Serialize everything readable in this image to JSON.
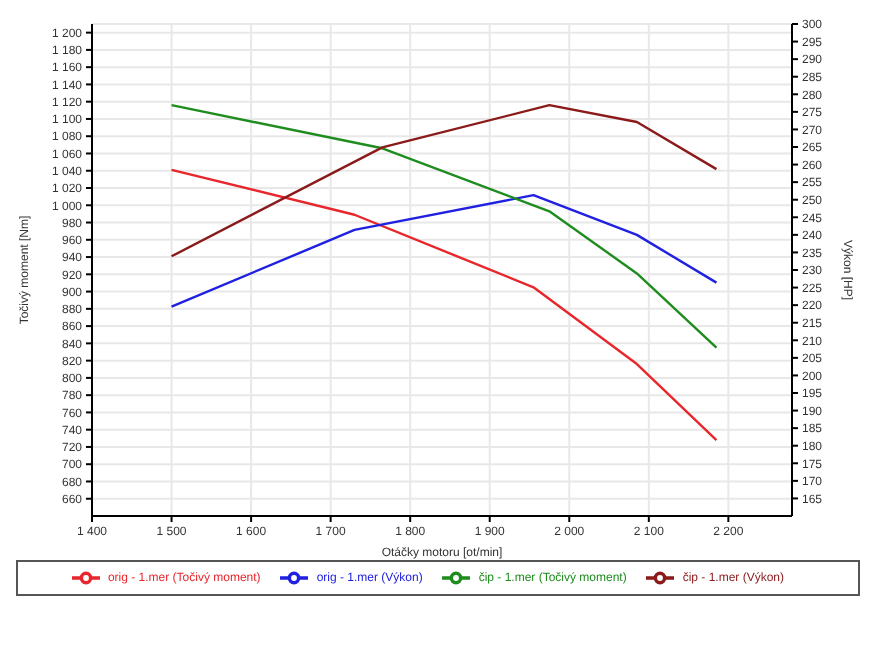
{
  "chart_data": {
    "type": "line",
    "xlabel": "Otáčky motoru [ot/min]",
    "ylabel": "Točivý moment [Nm]",
    "y2label": "Výkon [HP]",
    "xlim": [
      1400,
      2280
    ],
    "xticks": [
      {
        "value": 1400,
        "label": "1 400"
      },
      {
        "value": 1500,
        "label": "1 500"
      },
      {
        "value": 1600,
        "label": "1 600"
      },
      {
        "value": 1700,
        "label": "1 700"
      },
      {
        "value": 1800,
        "label": "1 800"
      },
      {
        "value": 1900,
        "label": "1 900"
      },
      {
        "value": 2000,
        "label": "2 000"
      },
      {
        "value": 2100,
        "label": "2 100"
      },
      {
        "value": 2200,
        "label": "2 200"
      }
    ],
    "ylim": [
      640,
      1210
    ],
    "yticks": [
      660,
      680,
      700,
      720,
      740,
      760,
      780,
      800,
      820,
      840,
      860,
      880,
      900,
      920,
      940,
      960,
      980,
      {
        "value": 1000,
        "label": "1 000"
      },
      {
        "value": 1020,
        "label": "1 020"
      },
      {
        "value": 1040,
        "label": "1 040"
      },
      {
        "value": 1060,
        "label": "1 060"
      },
      {
        "value": 1080,
        "label": "1 080"
      },
      {
        "value": 1100,
        "label": "1 100"
      },
      {
        "value": 1120,
        "label": "1 120"
      },
      {
        "value": 1140,
        "label": "1 140"
      },
      {
        "value": 1160,
        "label": "1 160"
      },
      {
        "value": 1180,
        "label": "1 180"
      },
      {
        "value": 1200,
        "label": "1 200"
      }
    ],
    "y2lim": [
      160,
      300
    ],
    "y2ticks": [
      165,
      170,
      175,
      180,
      185,
      190,
      195,
      200,
      205,
      210,
      215,
      220,
      225,
      230,
      235,
      240,
      245,
      250,
      255,
      260,
      265,
      270,
      275,
      280,
      285,
      290,
      295,
      300
    ],
    "grid": true,
    "legend": "bottom",
    "marker": "none",
    "line_style": "solid",
    "series": [
      {
        "name": "orig - 1.mer  (Točivý moment)",
        "color": "#e8262b",
        "x": [
          1500,
          1730,
          1955,
          2085,
          2185
        ],
        "values": [
          1041,
          989,
          905,
          816,
          728
        ]
      },
      {
        "name": "orig - 1.mer  (Výkon)",
        "color": "#2020e0",
        "axis": "y2",
        "x": [
          1500,
          1730,
          1955,
          2085,
          2185
        ],
        "values": [
          219.6,
          241.4,
          251.3,
          240,
          226.4
        ]
      },
      {
        "name": "čip - 1.mer  (Točivý moment)",
        "color": "#1e8c1e",
        "x": [
          1500,
          1765,
          1975,
          2085,
          2185
        ],
        "values": [
          1116,
          1066,
          993,
          921,
          835
        ]
      },
      {
        "name": "čip - 1.mer  (Výkon)",
        "color": "#8b1a1a",
        "axis": "y2",
        "x": [
          1500,
          1765,
          1975,
          2085,
          2185
        ],
        "values": [
          233.9,
          264.9,
          276.9,
          272.1,
          258.7
        ]
      }
    ]
  }
}
